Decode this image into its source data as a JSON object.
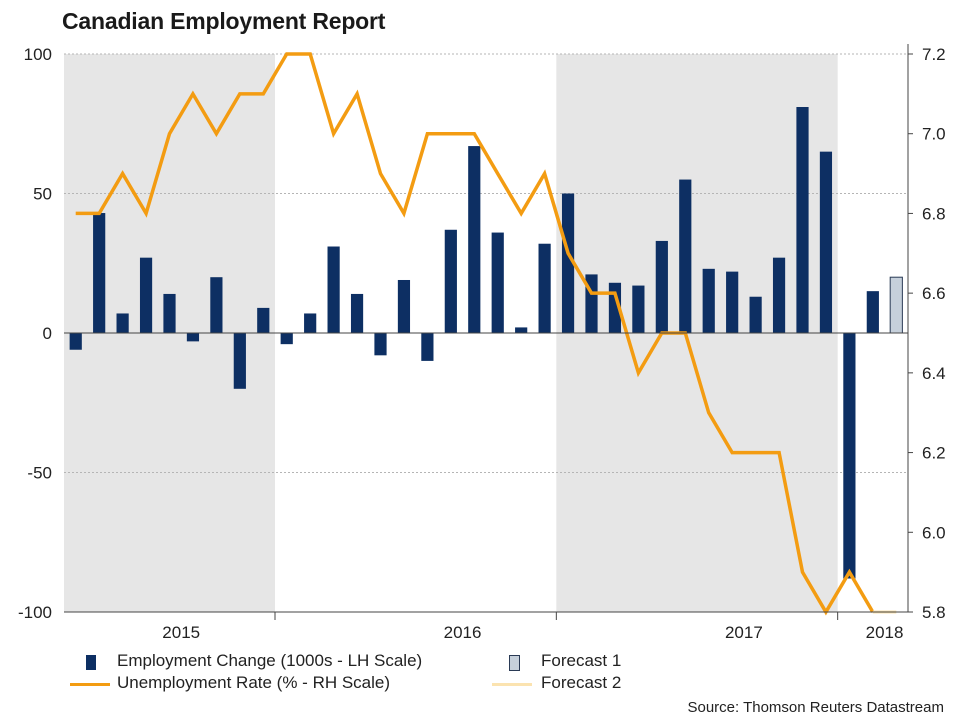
{
  "title": "Canadian Employment Report",
  "source": "Source: Thomson Reuters Datastream",
  "legend": {
    "employment": "Employment Change (1000s - LH Scale)",
    "forecast1": "Forecast 1",
    "unemployment": "Unemployment Rate (% - RH Scale)",
    "forecast2": "Forecast 2"
  },
  "colors": {
    "bar": "#0d2f63",
    "line": "#f39c12",
    "forecast1": "#c6d0db",
    "forecast2": "#fbe3b0",
    "shade": "#e6e6e6"
  },
  "chart_data": {
    "type": "bar+line",
    "title": "Canadian Employment Report",
    "left_axis": {
      "label": "Employment Change (1000s)",
      "ylim": [
        -100,
        100
      ],
      "ticks": [
        -100,
        -50,
        0,
        50,
        100
      ],
      "tick_labels": [
        "-100",
        "-50",
        "0",
        "50",
        "100"
      ]
    },
    "right_axis": {
      "label": "Unemployment Rate (%)",
      "ylim": [
        5.8,
        7.2
      ],
      "ticks": [
        5.8,
        6.0,
        6.2,
        6.4,
        6.6,
        6.8,
        7.0,
        7.2
      ],
      "tick_labels": [
        "5.8",
        "6.0",
        "6.2",
        "6.4",
        "6.6",
        "6.8",
        "7.0",
        "7.2"
      ]
    },
    "year_labels": [
      {
        "label": "2015",
        "month_index": 4.5
      },
      {
        "label": "2016",
        "month_index": 16.5
      },
      {
        "label": "2017",
        "month_index": 28.5
      },
      {
        "label": "2018",
        "month_index": 34.5
      }
    ],
    "shaded_years": [
      {
        "from": 0,
        "to": 8.5
      },
      {
        "from": 20.5,
        "to": 32.5
      }
    ],
    "year_dividers": [
      8.5,
      20.5,
      32.5
    ],
    "months": [
      "2014-12",
      "2015-01",
      "2015-02",
      "2015-03",
      "2015-04",
      "2015-05",
      "2015-06",
      "2015-07",
      "2015-08",
      "2015-09",
      "2015-10",
      "2015-11",
      "2015-12",
      "2016-01",
      "2016-02",
      "2016-03",
      "2016-04",
      "2016-05",
      "2016-06",
      "2016-07",
      "2016-08",
      "2016-09",
      "2016-10",
      "2016-11",
      "2016-12",
      "2017-01",
      "2017-02",
      "2017-03",
      "2017-04",
      "2017-05",
      "2017-06",
      "2017-07",
      "2017-08",
      "2017-09",
      "2017-10",
      "2017-11"
    ],
    "series": [
      {
        "name": "Employment Change (1000s - LH Scale)",
        "kind": "bar",
        "axis": "left",
        "values": [
          -6,
          43,
          7,
          27,
          14,
          -3,
          20,
          -20,
          9,
          -4,
          7,
          31,
          14,
          -8,
          19,
          -10,
          37,
          67,
          36,
          2,
          32,
          50,
          21,
          18,
          17,
          33,
          55,
          23,
          22,
          13,
          27,
          81,
          65,
          -88,
          15
        ]
      },
      {
        "name": "Forecast 1",
        "kind": "bar",
        "axis": "left",
        "index": 35,
        "values": [
          20
        ]
      },
      {
        "name": "Unemployment Rate (% - RH Scale)",
        "kind": "line",
        "axis": "right",
        "values": [
          6.8,
          6.8,
          6.9,
          6.8,
          7.0,
          7.1,
          7.0,
          7.1,
          7.1,
          7.2,
          7.2,
          7.0,
          7.1,
          6.9,
          6.8,
          7.0,
          7.0,
          7.0,
          6.9,
          6.8,
          6.9,
          6.7,
          6.6,
          6.6,
          6.4,
          6.5,
          6.5,
          6.3,
          6.2,
          6.2,
          6.2,
          5.9,
          5.8,
          5.9,
          5.8
        ]
      },
      {
        "name": "Forecast 2",
        "kind": "line",
        "axis": "right",
        "index_from": 34,
        "values": [
          5.8,
          5.8
        ]
      }
    ]
  }
}
